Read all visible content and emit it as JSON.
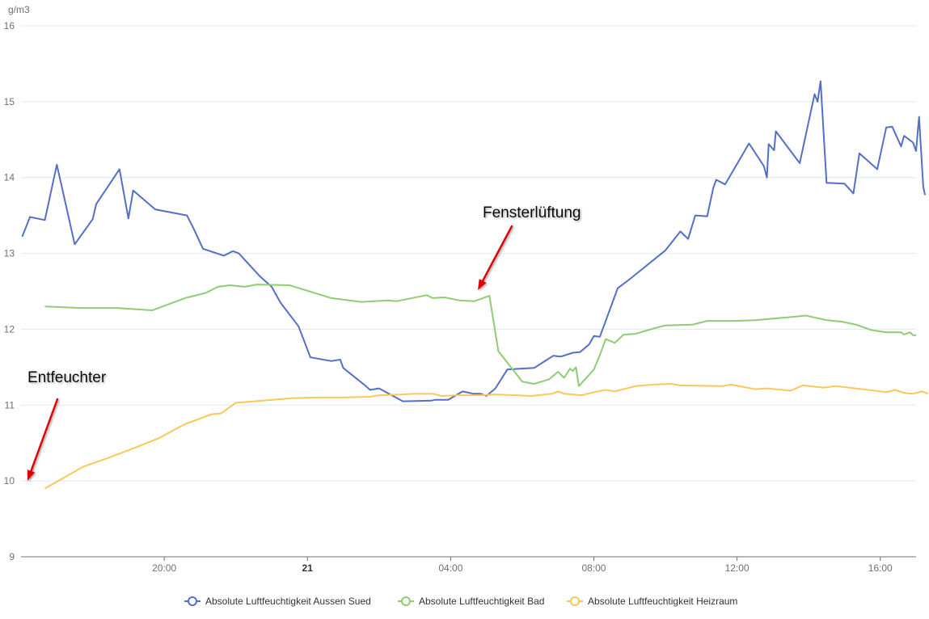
{
  "chart_data": {
    "type": "line",
    "ylabel": "g/m3",
    "ylim": [
      9,
      16
    ],
    "y_ticks": [
      "9",
      "10",
      "11",
      "12",
      "13",
      "14",
      "15",
      "16"
    ],
    "x_range": [
      "2024-01-20T16:00",
      "2024-01-21T17:00"
    ],
    "x_ticks": [
      {
        "t": "2024-01-20T20:00",
        "label": "20:00",
        "bold": false
      },
      {
        "t": "2024-01-21T00:00",
        "label": "21",
        "bold": true
      },
      {
        "t": "2024-01-21T04:00",
        "label": "04:00",
        "bold": false
      },
      {
        "t": "2024-01-21T08:00",
        "label": "08:00",
        "bold": false
      },
      {
        "t": "2024-01-21T12:00",
        "label": "12:00",
        "bold": false
      },
      {
        "t": "2024-01-21T16:00",
        "label": "16:00",
        "bold": false
      }
    ],
    "grid": true,
    "legend_position": "bottom-center",
    "series": [
      {
        "name": "Absolute Luftfeuchtigkeit Aussen Sued",
        "color": "#5470c6",
        "points": [
          [
            "2024-01-20T16:02",
            13.22
          ],
          [
            "2024-01-20T16:15",
            13.48
          ],
          [
            "2024-01-20T16:40",
            13.44
          ],
          [
            "2024-01-20T17:00",
            14.17
          ],
          [
            "2024-01-20T17:30",
            13.12
          ],
          [
            "2024-01-20T18:00",
            13.45
          ],
          [
            "2024-01-20T18:06",
            13.65
          ],
          [
            "2024-01-20T18:45",
            14.11
          ],
          [
            "2024-01-20T19:00",
            13.46
          ],
          [
            "2024-01-20T19:08",
            13.83
          ],
          [
            "2024-01-20T19:45",
            13.58
          ],
          [
            "2024-01-20T20:38",
            13.5
          ],
          [
            "2024-01-20T20:49",
            13.33
          ],
          [
            "2024-01-20T21:05",
            13.06
          ],
          [
            "2024-01-20T21:40",
            12.97
          ],
          [
            "2024-01-20T21:55",
            13.03
          ],
          [
            "2024-01-20T22:05",
            13.0
          ],
          [
            "2024-01-20T22:40",
            12.7
          ],
          [
            "2024-01-20T23:00",
            12.56
          ],
          [
            "2024-01-20T23:15",
            12.35
          ],
          [
            "2024-01-20T23:45",
            12.04
          ],
          [
            "2024-01-21T00:05",
            11.63
          ],
          [
            "2024-01-21T00:40",
            11.58
          ],
          [
            "2024-01-21T00:55",
            11.6
          ],
          [
            "2024-01-21T01:00",
            11.49
          ],
          [
            "2024-01-21T01:38",
            11.25
          ],
          [
            "2024-01-21T01:45",
            11.2
          ],
          [
            "2024-01-21T02:00",
            11.22
          ],
          [
            "2024-01-21T02:40",
            11.05
          ],
          [
            "2024-01-21T03:28",
            11.06
          ],
          [
            "2024-01-21T03:34",
            11.07
          ],
          [
            "2024-01-21T03:56",
            11.07
          ],
          [
            "2024-01-21T04:20",
            11.18
          ],
          [
            "2024-01-21T04:38",
            11.15
          ],
          [
            "2024-01-21T04:50",
            11.15
          ],
          [
            "2024-01-21T05:00",
            11.12
          ],
          [
            "2024-01-21T05:15",
            11.22
          ],
          [
            "2024-01-21T05:35",
            11.47
          ],
          [
            "2024-01-21T06:20",
            11.49
          ],
          [
            "2024-01-21T06:40",
            11.59
          ],
          [
            "2024-01-21T06:52",
            11.65
          ],
          [
            "2024-01-21T07:05",
            11.64
          ],
          [
            "2024-01-21T07:25",
            11.69
          ],
          [
            "2024-01-21T07:37",
            11.7
          ],
          [
            "2024-01-21T07:52",
            11.8
          ],
          [
            "2024-01-21T08:00",
            11.91
          ],
          [
            "2024-01-21T08:10",
            11.9
          ],
          [
            "2024-01-21T08:40",
            12.54
          ],
          [
            "2024-01-21T09:00",
            12.66
          ],
          [
            "2024-01-21T10:00",
            13.04
          ],
          [
            "2024-01-21T10:25",
            13.29
          ],
          [
            "2024-01-21T10:38",
            13.19
          ],
          [
            "2024-01-21T10:50",
            13.5
          ],
          [
            "2024-01-21T11:10",
            13.49
          ],
          [
            "2024-01-21T11:20",
            13.86
          ],
          [
            "2024-01-21T11:25",
            13.97
          ],
          [
            "2024-01-21T11:40",
            13.91
          ],
          [
            "2024-01-21T12:20",
            14.45
          ],
          [
            "2024-01-21T12:45",
            14.15
          ],
          [
            "2024-01-21T12:50",
            14.0
          ],
          [
            "2024-01-21T12:53",
            14.44
          ],
          [
            "2024-01-21T13:02",
            14.36
          ],
          [
            "2024-01-21T13:05",
            14.61
          ],
          [
            "2024-01-21T13:45",
            14.19
          ],
          [
            "2024-01-21T14:10",
            15.1
          ],
          [
            "2024-01-21T14:15",
            15.0
          ],
          [
            "2024-01-21T14:20",
            15.27
          ],
          [
            "2024-01-21T14:30",
            13.93
          ],
          [
            "2024-01-21T15:00",
            13.92
          ],
          [
            "2024-01-21T15:15",
            13.79
          ],
          [
            "2024-01-21T15:25",
            14.32
          ],
          [
            "2024-01-21T15:55",
            14.11
          ],
          [
            "2024-01-21T16:10",
            14.66
          ],
          [
            "2024-01-21T16:20",
            14.67
          ],
          [
            "2024-01-21T16:35",
            14.41
          ],
          [
            "2024-01-21T16:40",
            14.55
          ],
          [
            "2024-01-21T16:55",
            14.46
          ],
          [
            "2024-01-21T17:00",
            14.35
          ],
          [
            "2024-01-21T17:05",
            14.8
          ],
          [
            "2024-01-21T17:12",
            13.88
          ],
          [
            "2024-01-21T17:15",
            13.77
          ]
        ]
      },
      {
        "name": "Absolute Luftfeuchtigkeit Bad",
        "color": "#91cc75",
        "points": [
          [
            "2024-01-20T16:40",
            12.3
          ],
          [
            "2024-01-20T17:40",
            12.28
          ],
          [
            "2024-01-20T18:40",
            12.28
          ],
          [
            "2024-01-20T19:40",
            12.25
          ],
          [
            "2024-01-20T20:35",
            12.41
          ],
          [
            "2024-01-20T21:10",
            12.48
          ],
          [
            "2024-01-20T21:30",
            12.56
          ],
          [
            "2024-01-20T21:50",
            12.58
          ],
          [
            "2024-01-20T22:15",
            12.56
          ],
          [
            "2024-01-20T22:35",
            12.59
          ],
          [
            "2024-01-20T23:30",
            12.58
          ],
          [
            "2024-01-21T00:40",
            12.41
          ],
          [
            "2024-01-21T01:30",
            12.36
          ],
          [
            "2024-01-21T02:15",
            12.38
          ],
          [
            "2024-01-21T02:30",
            12.37
          ],
          [
            "2024-01-21T03:20",
            12.45
          ],
          [
            "2024-01-21T03:30",
            12.41
          ],
          [
            "2024-01-21T03:50",
            12.42
          ],
          [
            "2024-01-21T04:15",
            12.38
          ],
          [
            "2024-01-21T04:40",
            12.37
          ],
          [
            "2024-01-21T05:05",
            12.44
          ],
          [
            "2024-01-21T05:20",
            11.71
          ],
          [
            "2024-01-21T06:00",
            11.31
          ],
          [
            "2024-01-21T06:20",
            11.28
          ],
          [
            "2024-01-21T06:45",
            11.34
          ],
          [
            "2024-01-21T07:00",
            11.44
          ],
          [
            "2024-01-21T07:10",
            11.36
          ],
          [
            "2024-01-21T07:20",
            11.48
          ],
          [
            "2024-01-21T07:25",
            11.45
          ],
          [
            "2024-01-21T07:30",
            11.5
          ],
          [
            "2024-01-21T07:35",
            11.25
          ],
          [
            "2024-01-21T08:00",
            11.47
          ],
          [
            "2024-01-21T08:10",
            11.66
          ],
          [
            "2024-01-21T08:20",
            11.87
          ],
          [
            "2024-01-21T08:35",
            11.82
          ],
          [
            "2024-01-21T08:50",
            11.93
          ],
          [
            "2024-01-21T09:10",
            11.94
          ],
          [
            "2024-01-21T09:40",
            12.01
          ],
          [
            "2024-01-21T10:00",
            12.05
          ],
          [
            "2024-01-21T10:45",
            12.06
          ],
          [
            "2024-01-21T11:10",
            12.11
          ],
          [
            "2024-01-21T11:55",
            12.11
          ],
          [
            "2024-01-21T12:30",
            12.12
          ],
          [
            "2024-01-21T13:30",
            12.16
          ],
          [
            "2024-01-21T13:55",
            12.18
          ],
          [
            "2024-01-21T14:30",
            12.12
          ],
          [
            "2024-01-21T14:55",
            12.1
          ],
          [
            "2024-01-21T15:20",
            12.06
          ],
          [
            "2024-01-21T15:45",
            11.99
          ],
          [
            "2024-01-21T16:10",
            11.96
          ],
          [
            "2024-01-21T16:35",
            11.96
          ],
          [
            "2024-01-21T16:40",
            11.93
          ],
          [
            "2024-01-21T16:50",
            11.96
          ],
          [
            "2024-01-21T16:55",
            11.92
          ],
          [
            "2024-01-21T17:00",
            11.92
          ]
        ]
      },
      {
        "name": "Absolute Luftfeuchtigkeit Heizraum",
        "color": "#fac858",
        "points": [
          [
            "2024-01-20T16:40",
            9.9
          ],
          [
            "2024-01-20T17:45",
            10.19
          ],
          [
            "2024-01-20T18:25",
            10.3
          ],
          [
            "2024-01-20T19:15",
            10.45
          ],
          [
            "2024-01-20T19:50",
            10.56
          ],
          [
            "2024-01-20T20:35",
            10.75
          ],
          [
            "2024-01-20T21:20",
            10.88
          ],
          [
            "2024-01-20T21:35",
            10.89
          ],
          [
            "2024-01-20T22:00",
            11.03
          ],
          [
            "2024-01-20T22:45",
            11.06
          ],
          [
            "2024-01-20T23:35",
            11.09
          ],
          [
            "2024-01-21T00:15",
            11.1
          ],
          [
            "2024-01-21T00:45",
            11.1
          ],
          [
            "2024-01-21T01:00",
            11.1
          ],
          [
            "2024-01-21T01:45",
            11.11
          ],
          [
            "2024-01-21T02:00",
            11.13
          ],
          [
            "2024-01-21T02:40",
            11.14
          ],
          [
            "2024-01-21T03:00",
            11.15
          ],
          [
            "2024-01-21T03:30",
            11.15
          ],
          [
            "2024-01-21T03:45",
            11.12
          ],
          [
            "2024-01-21T04:10",
            11.13
          ],
          [
            "2024-01-21T04:50",
            11.13
          ],
          [
            "2024-01-21T05:15",
            11.14
          ],
          [
            "2024-01-21T06:15",
            11.12
          ],
          [
            "2024-01-21T06:50",
            11.15
          ],
          [
            "2024-01-21T07:00",
            11.18
          ],
          [
            "2024-01-21T07:10",
            11.15
          ],
          [
            "2024-01-21T07:40",
            11.13
          ],
          [
            "2024-01-21T08:00",
            11.17
          ],
          [
            "2024-01-21T08:20",
            11.2
          ],
          [
            "2024-01-21T08:35",
            11.18
          ],
          [
            "2024-01-21T09:10",
            11.25
          ],
          [
            "2024-01-21T09:40",
            11.27
          ],
          [
            "2024-01-21T10:10",
            11.28
          ],
          [
            "2024-01-21T10:25",
            11.26
          ],
          [
            "2024-01-21T11:35",
            11.25
          ],
          [
            "2024-01-21T11:50",
            11.27
          ],
          [
            "2024-01-21T12:30",
            11.21
          ],
          [
            "2024-01-21T12:50",
            11.22
          ],
          [
            "2024-01-21T13:30",
            11.19
          ],
          [
            "2024-01-21T13:50",
            11.26
          ],
          [
            "2024-01-21T14:25",
            11.23
          ],
          [
            "2024-01-21T14:45",
            11.25
          ],
          [
            "2024-01-21T15:40",
            11.2
          ],
          [
            "2024-01-21T16:10",
            11.17
          ],
          [
            "2024-01-21T16:25",
            11.2
          ],
          [
            "2024-01-21T16:40",
            11.16
          ],
          [
            "2024-01-21T16:55",
            11.15
          ],
          [
            "2024-01-21T17:10",
            11.18
          ],
          [
            "2024-01-21T17:20",
            11.15
          ]
        ]
      }
    ],
    "annotations": [
      {
        "text": "Entfeuchter",
        "arrow_color": "#e00000",
        "target": [
          "2024-01-20T16:00",
          10.0
        ]
      },
      {
        "text": "Fensterlüftung",
        "arrow_color": "#e00000",
        "target": [
          "2024-01-21T05:00",
          12.45
        ]
      }
    ]
  }
}
